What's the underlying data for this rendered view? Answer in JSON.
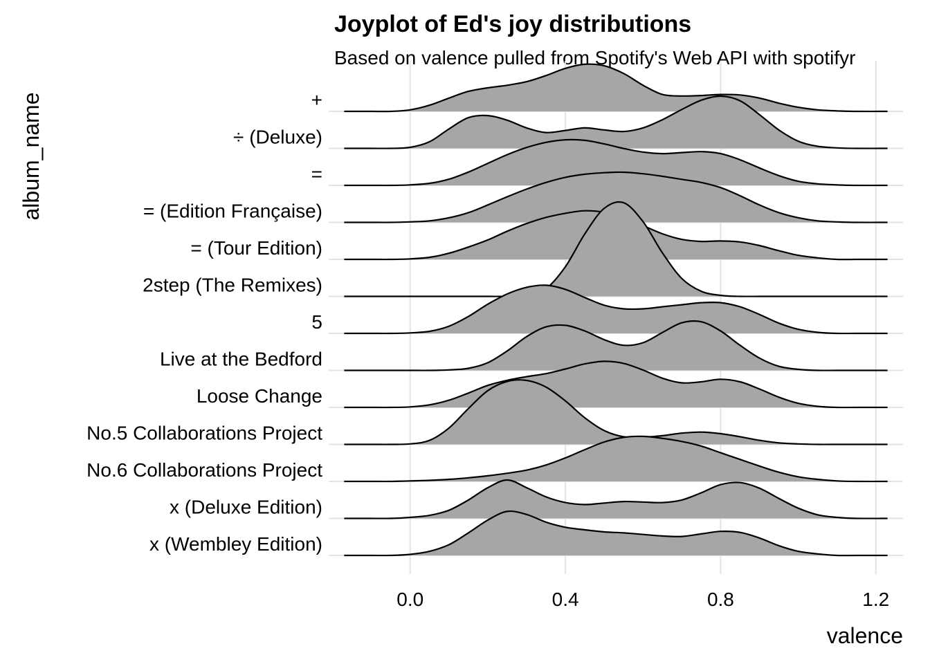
{
  "chart_data": {
    "type": "area",
    "title": "Joyplot of Ed's joy distributions",
    "subtitle": "Based on valence pulled from Spotify's Web API with spotifyr",
    "xlabel": "valence",
    "ylabel": "album_name",
    "xlim": [
      -0.21,
      1.27
    ],
    "x_ticks": [
      0.0,
      0.4,
      0.8,
      1.2
    ],
    "x_tick_labels": [
      "0.0",
      "0.4",
      "0.8",
      "1.2"
    ],
    "grid": true,
    "fill_color": "#a6a6a6",
    "line_color": "#000000",
    "x": [
      -0.17,
      -0.1,
      -0.05,
      0.0,
      0.05,
      0.1,
      0.15,
      0.2,
      0.25,
      0.3,
      0.35,
      0.4,
      0.45,
      0.5,
      0.55,
      0.6,
      0.65,
      0.7,
      0.75,
      0.8,
      0.85,
      0.9,
      0.95,
      1.0,
      1.05,
      1.1,
      1.15,
      1.23
    ],
    "series": [
      {
        "name": "x (Wembley Edition)",
        "values": [
          0.0,
          0.0,
          0.0,
          0.02,
          0.08,
          0.21,
          0.44,
          0.69,
          0.86,
          0.8,
          0.65,
          0.55,
          0.5,
          0.46,
          0.44,
          0.41,
          0.38,
          0.37,
          0.42,
          0.47,
          0.45,
          0.34,
          0.19,
          0.08,
          0.03,
          0.0,
          0.0,
          0.0
        ]
      },
      {
        "name": "x (Deluxe Edition)",
        "values": [
          0.0,
          0.0,
          0.0,
          0.02,
          0.06,
          0.16,
          0.36,
          0.6,
          0.75,
          0.6,
          0.42,
          0.31,
          0.27,
          0.3,
          0.33,
          0.32,
          0.31,
          0.36,
          0.5,
          0.66,
          0.7,
          0.59,
          0.39,
          0.2,
          0.07,
          0.02,
          0.0,
          0.0
        ]
      },
      {
        "name": "No.6 Collaborations Project",
        "values": [
          0.0,
          0.0,
          0.0,
          0.01,
          0.02,
          0.04,
          0.07,
          0.11,
          0.16,
          0.22,
          0.32,
          0.46,
          0.62,
          0.77,
          0.86,
          0.88,
          0.84,
          0.78,
          0.69,
          0.56,
          0.43,
          0.3,
          0.18,
          0.09,
          0.04,
          0.01,
          0.0,
          0.0
        ]
      },
      {
        "name": "No.5 Collaborations Project",
        "values": [
          0.0,
          0.0,
          0.0,
          0.01,
          0.08,
          0.32,
          0.7,
          1.05,
          1.23,
          1.25,
          1.12,
          0.85,
          0.52,
          0.27,
          0.15,
          0.14,
          0.17,
          0.22,
          0.24,
          0.21,
          0.15,
          0.08,
          0.03,
          0.01,
          0.0,
          0.0,
          0.0,
          0.0
        ]
      },
      {
        "name": "Loose Change",
        "values": [
          0.0,
          0.0,
          0.0,
          0.01,
          0.05,
          0.14,
          0.28,
          0.43,
          0.53,
          0.6,
          0.66,
          0.75,
          0.85,
          0.9,
          0.86,
          0.73,
          0.57,
          0.48,
          0.5,
          0.55,
          0.5,
          0.36,
          0.2,
          0.08,
          0.02,
          0.0,
          0.0,
          0.0
        ]
      },
      {
        "name": "Live at the Bedford",
        "values": [
          0.0,
          0.0,
          0.0,
          0.0,
          0.0,
          0.01,
          0.04,
          0.15,
          0.38,
          0.66,
          0.85,
          0.88,
          0.77,
          0.6,
          0.49,
          0.54,
          0.74,
          0.93,
          0.95,
          0.77,
          0.49,
          0.24,
          0.08,
          0.02,
          0.0,
          0.0,
          0.0,
          0.0
        ]
      },
      {
        "name": "5",
        "values": [
          0.0,
          0.0,
          0.0,
          0.01,
          0.04,
          0.14,
          0.33,
          0.57,
          0.77,
          0.9,
          0.94,
          0.86,
          0.7,
          0.55,
          0.48,
          0.48,
          0.52,
          0.56,
          0.6,
          0.6,
          0.52,
          0.37,
          0.2,
          0.08,
          0.02,
          0.0,
          0.0,
          0.0
        ]
      },
      {
        "name": "2step (The Remixes)",
        "values": [
          0.0,
          0.0,
          0.0,
          0.0,
          0.0,
          0.0,
          0.0,
          0.0,
          0.0,
          0.02,
          0.15,
          0.58,
          1.22,
          1.72,
          1.83,
          1.46,
          0.85,
          0.35,
          0.1,
          0.02,
          0.0,
          0.0,
          0.0,
          0.0,
          0.0,
          0.0,
          0.0,
          0.0
        ]
      },
      {
        "name": "= (Tour Edition)",
        "values": [
          0.0,
          0.0,
          0.0,
          0.01,
          0.04,
          0.12,
          0.24,
          0.38,
          0.55,
          0.7,
          0.82,
          0.9,
          0.95,
          0.92,
          0.82,
          0.66,
          0.5,
          0.39,
          0.35,
          0.36,
          0.34,
          0.27,
          0.17,
          0.08,
          0.03,
          0.0,
          0.0,
          0.0
        ]
      },
      {
        "name": "= (Edition Française)",
        "values": [
          0.0,
          0.0,
          0.0,
          0.01,
          0.03,
          0.09,
          0.19,
          0.34,
          0.5,
          0.65,
          0.78,
          0.88,
          0.94,
          0.97,
          0.98,
          0.95,
          0.9,
          0.84,
          0.78,
          0.68,
          0.52,
          0.34,
          0.19,
          0.09,
          0.03,
          0.01,
          0.0,
          0.0
        ]
      },
      {
        "name": "=",
        "values": [
          0.0,
          0.0,
          0.0,
          0.01,
          0.04,
          0.12,
          0.26,
          0.43,
          0.6,
          0.74,
          0.84,
          0.89,
          0.88,
          0.81,
          0.72,
          0.65,
          0.62,
          0.64,
          0.66,
          0.62,
          0.5,
          0.34,
          0.19,
          0.08,
          0.03,
          0.01,
          0.0,
          0.0
        ]
      },
      {
        "name": "÷ (Deluxe)",
        "values": [
          0.0,
          0.0,
          0.0,
          0.02,
          0.13,
          0.38,
          0.6,
          0.64,
          0.55,
          0.4,
          0.31,
          0.35,
          0.4,
          0.36,
          0.33,
          0.4,
          0.56,
          0.76,
          0.94,
          1.02,
          0.93,
          0.66,
          0.36,
          0.14,
          0.04,
          0.01,
          0.0,
          0.0
        ]
      },
      {
        "name": "+",
        "values": [
          0.0,
          0.0,
          0.0,
          0.03,
          0.12,
          0.26,
          0.39,
          0.46,
          0.51,
          0.58,
          0.7,
          0.84,
          0.92,
          0.89,
          0.74,
          0.51,
          0.33,
          0.3,
          0.31,
          0.33,
          0.32,
          0.26,
          0.16,
          0.08,
          0.03,
          0.01,
          0.0,
          0.0
        ]
      }
    ]
  }
}
